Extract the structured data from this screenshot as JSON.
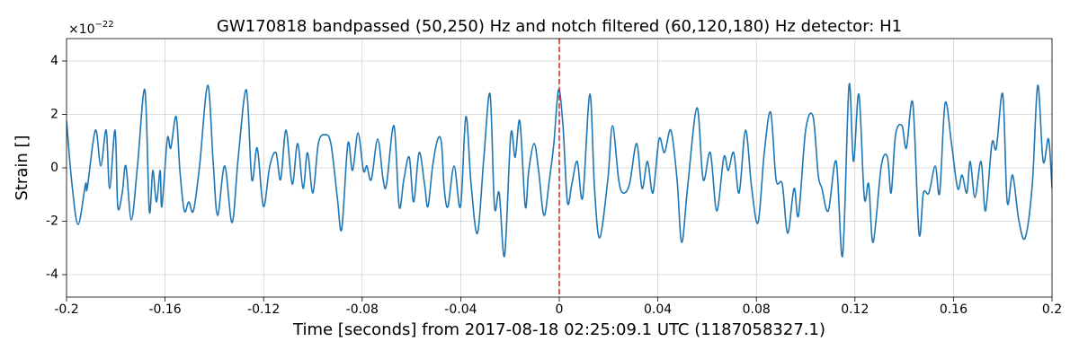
{
  "chart_data": {
    "type": "line",
    "title": "GW170818 bandpassed (50,250) Hz and notch filtered (60,120,180) Hz detector: H1",
    "xlabel": "Time [seconds] from 2017-08-18 02:25:09.1 UTC (1187058327.1)",
    "ylabel": "Strain []",
    "offset_text": {
      "base": "×10",
      "exponent": "−22"
    },
    "color": "#1f77b4",
    "grid": true,
    "vline": {
      "x": 0,
      "color": "#d62728",
      "style": "dashed"
    },
    "xlim": [
      -0.2,
      0.2
    ],
    "ylim": [
      -4.84,
      4.84
    ],
    "xticks": [
      -0.2,
      -0.16,
      -0.12,
      -0.08,
      -0.04,
      0,
      0.04,
      0.08,
      0.12,
      0.16,
      0.2
    ],
    "yticks": [
      -4,
      -2,
      0,
      2,
      4
    ],
    "x": [
      -0.2,
      -0.1978,
      -0.1953,
      -0.1923,
      -0.1916,
      -0.1883,
      -0.1861,
      -0.1839,
      -0.1825,
      -0.1803,
      -0.1792,
      -0.1774,
      -0.1759,
      -0.1737,
      -0.1712,
      -0.1682,
      -0.1664,
      -0.165,
      -0.1635,
      -0.162,
      -0.1613,
      -0.1591,
      -0.1577,
      -0.1555,
      -0.154,
      -0.1522,
      -0.1504,
      -0.1485,
      -0.146,
      -0.1427,
      -0.1405,
      -0.1387,
      -0.1358,
      -0.1328,
      -0.1303,
      -0.127,
      -0.1248,
      -0.1226,
      -0.1201,
      -0.1175,
      -0.115,
      -0.1131,
      -0.1109,
      -0.1084,
      -0.1062,
      -0.104,
      -0.1022,
      -0.1,
      -0.0978,
      -0.0952,
      -0.0927,
      -0.0901,
      -0.0883,
      -0.0858,
      -0.0839,
      -0.0817,
      -0.0795,
      -0.0781,
      -0.0763,
      -0.0737,
      -0.0715,
      -0.0701,
      -0.0671,
      -0.065,
      -0.0631,
      -0.0609,
      -0.0591,
      -0.0569,
      -0.0547,
      -0.0533,
      -0.0514,
      -0.0493,
      -0.0478,
      -0.0467,
      -0.0452,
      -0.0427,
      -0.0401,
      -0.0379,
      -0.0358,
      -0.0332,
      -0.0306,
      -0.0281,
      -0.0263,
      -0.0244,
      -0.0222,
      -0.0197,
      -0.0179,
      -0.016,
      -0.0138,
      -0.0124,
      -0.0102,
      -0.0084,
      -0.0062,
      -0.004,
      -0.0022,
      -0.0003,
      0.0015,
      0.0033,
      0.0051,
      0.0073,
      0.0095,
      0.0124,
      0.0143,
      0.0164,
      0.0197,
      0.0216,
      0.0241,
      0.0259,
      0.0285,
      0.0314,
      0.0336,
      0.0358,
      0.038,
      0.0405,
      0.0427,
      0.0453,
      0.0478,
      0.0497,
      0.0522,
      0.0559,
      0.0584,
      0.0613,
      0.0639,
      0.0668,
      0.0686,
      0.0708,
      0.073,
      0.0756,
      0.0781,
      0.0807,
      0.0832,
      0.0858,
      0.088,
      0.0905,
      0.0927,
      0.0953,
      0.0971,
      0.1,
      0.103,
      0.1051,
      0.1066,
      0.1092,
      0.1124,
      0.115,
      0.1176,
      0.1194,
      0.1216,
      0.1238,
      0.1256,
      0.1274,
      0.1307,
      0.1332,
      0.1347,
      0.1365,
      0.1391,
      0.1409,
      0.1435,
      0.146,
      0.1478,
      0.15,
      0.1526,
      0.1544,
      0.1566,
      0.1592,
      0.1617,
      0.1635,
      0.1654,
      0.1668,
      0.1687,
      0.1712,
      0.173,
      0.1756,
      0.1774,
      0.18,
      0.1818,
      0.184,
      0.1865,
      0.1891,
      0.192,
      0.1942,
      0.1964,
      0.1986,
      0.2
    ],
    "values": [
      1.75,
      -0.61,
      -2.12,
      -0.61,
      -0.77,
      1.41,
      0.07,
      1.41,
      -0.77,
      1.41,
      -1.45,
      -0.94,
      0.07,
      -1.95,
      0.07,
      2.92,
      -1.61,
      -0.1,
      -1.28,
      -0.1,
      -1.45,
      1.08,
      0.74,
      1.92,
      -0.1,
      -1.61,
      -1.28,
      -1.61,
      0.07,
      3.09,
      0.24,
      -1.78,
      0.07,
      -2.05,
      0.4,
      2.92,
      -0.44,
      0.74,
      -1.45,
      0.07,
      0.57,
      -0.44,
      1.41,
      -0.61,
      0.91,
      -0.77,
      0.57,
      -0.94,
      0.91,
      1.24,
      0.91,
      -1.11,
      -2.29,
      0.91,
      -0.1,
      1.31,
      -0.1,
      0.07,
      -0.44,
      1.08,
      -0.44,
      -0.61,
      1.58,
      -1.45,
      -0.44,
      0.4,
      -1.28,
      0.57,
      -0.61,
      -1.45,
      0.07,
      1.08,
      0.91,
      -0.77,
      -1.45,
      0.07,
      -1.45,
      1.92,
      -0.61,
      -2.45,
      0.4,
      2.76,
      -1.45,
      -0.94,
      -3.29,
      1.24,
      0.4,
      1.75,
      -1.45,
      -0.1,
      0.91,
      -0.1,
      -1.78,
      -0.44,
      0.91,
      2.92,
      1.58,
      -1.28,
      -0.61,
      0.24,
      -1.11,
      2.76,
      -0.77,
      -2.62,
      -0.44,
      1.58,
      -0.44,
      -0.94,
      -0.61,
      0.91,
      -0.77,
      0.24,
      -0.94,
      1.08,
      0.57,
      1.41,
      -0.44,
      -2.79,
      -0.61,
      2.25,
      -0.44,
      0.57,
      -1.61,
      0.4,
      -0.1,
      0.57,
      -0.94,
      1.41,
      -0.77,
      -2.05,
      0.57,
      2.08,
      -0.44,
      -0.61,
      -2.45,
      -0.77,
      -1.78,
      1.41,
      1.92,
      -0.27,
      -0.77,
      -1.61,
      0.24,
      -3.29,
      3.09,
      0.24,
      2.76,
      -1.11,
      -0.61,
      -2.79,
      0.07,
      0.4,
      -0.94,
      1.24,
      1.58,
      0.74,
      2.42,
      -2.45,
      -0.94,
      -0.94,
      0.07,
      -0.94,
      2.42,
      0.91,
      -0.77,
      -0.27,
      -0.94,
      0.24,
      -1.11,
      0.24,
      -1.61,
      0.91,
      0.74,
      2.76,
      -1.28,
      -0.27,
      -1.95,
      -2.62,
      -0.61,
      3.09,
      0.24,
      1.08,
      -0.77
    ]
  }
}
